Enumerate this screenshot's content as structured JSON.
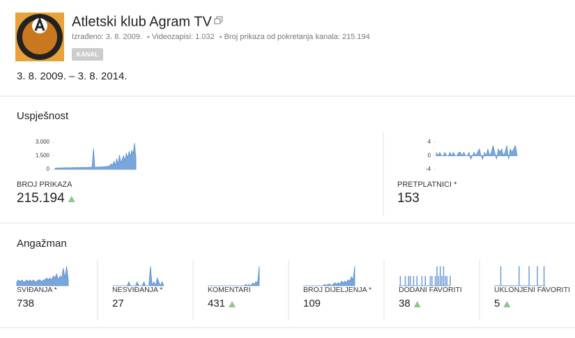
{
  "header": {
    "title": "Atletski klub Agram TV",
    "meta": [
      "Izrađeno: 3. 8. 2009.",
      "Videozapisi: 1.032",
      "Broj prikaza od pokretanja kanala: 215.194"
    ],
    "badge": "KANAL",
    "date_range": "3. 8. 2009. – 3. 8. 2014."
  },
  "performance": {
    "title": "Uspješnost",
    "metrics": [
      {
        "label": "BROJ PRIKAZA",
        "value": "215.194",
        "trend": "up",
        "chart": {
          "ylim": [
            0,
            3000
          ],
          "yticks": [
            {
              "value": 3000,
              "label": "3.000"
            },
            {
              "value": 1500,
              "label": "1.500"
            },
            0
          ],
          "values": [
            120,
            150,
            130,
            160,
            140,
            170,
            150,
            180,
            160,
            190,
            170,
            160,
            180,
            200,
            170,
            190,
            210,
            180,
            200,
            190,
            220,
            200,
            210,
            190,
            230,
            210,
            240,
            220,
            2300,
            250,
            230,
            260,
            240,
            280,
            260,
            300,
            270,
            320,
            290,
            350,
            400,
            600,
            450,
            900,
            380,
            1200,
            500,
            1600,
            700,
            1100,
            1500,
            900,
            1800,
            1200,
            2000,
            1400,
            2100,
            1700,
            2900,
            1300
          ]
        }
      },
      {
        "label": "PRETPLATNICI *",
        "value": "153",
        "trend": null,
        "chart": {
          "ylim": [
            -4,
            4
          ],
          "yticks": [
            4,
            0,
            -4
          ],
          "values": [
            1,
            0,
            1,
            0,
            0,
            1,
            0,
            0,
            1,
            0,
            1,
            0,
            0,
            1,
            1,
            0,
            1,
            0,
            0,
            1,
            -1,
            0,
            1,
            0,
            1,
            2,
            0,
            -1,
            1,
            0,
            2,
            0,
            1,
            3,
            1,
            -1,
            2,
            1,
            2,
            0,
            1,
            3,
            -1,
            2,
            1,
            2,
            3,
            0
          ]
        }
      }
    ]
  },
  "engagement": {
    "title": "Angažman",
    "metrics": [
      {
        "label": "SVIĐANJA *",
        "value": "738",
        "trend": null,
        "style": "area",
        "values": [
          2,
          3,
          2,
          3,
          2,
          2,
          3,
          2,
          3,
          2,
          3,
          2,
          2,
          3,
          3,
          2,
          3,
          3,
          4,
          3,
          4,
          3,
          5,
          4,
          6,
          3,
          5,
          4,
          9,
          4,
          10,
          3
        ]
      },
      {
        "label": "NESVIĐANJA *",
        "value": "27",
        "trend": null,
        "style": "area",
        "values": [
          0,
          0,
          0,
          0,
          0,
          0,
          0,
          0,
          0,
          0,
          1,
          0,
          0,
          0,
          0,
          1,
          0,
          0,
          0,
          1,
          0,
          0,
          0,
          5,
          0,
          1,
          0,
          2,
          1,
          0,
          1,
          0
        ]
      },
      {
        "label": "KOMENTARI",
        "value": "431",
        "trend": "up",
        "style": "area",
        "values": [
          0,
          0,
          0,
          0,
          0,
          0,
          0,
          0,
          0,
          0,
          0,
          0,
          0,
          0,
          0,
          0,
          0,
          0,
          0,
          0,
          0,
          0,
          0,
          1,
          0,
          1,
          0,
          2,
          1,
          3,
          2,
          14
        ]
      },
      {
        "label": "BROJ DIJELJENJA *",
        "value": "109",
        "trend": null,
        "style": "area",
        "values": [
          0,
          0,
          0,
          0,
          0,
          0,
          0,
          0,
          0,
          0,
          0,
          0,
          0,
          1,
          0,
          1,
          1,
          0,
          1,
          2,
          1,
          2,
          1,
          3,
          2,
          3,
          2,
          4,
          3,
          6,
          4,
          13
        ]
      },
      {
        "label": "DODANI FAVORITI",
        "value": "38",
        "trend": "up",
        "style": "bar",
        "values": [
          0,
          1,
          0,
          0,
          1,
          0,
          1,
          1,
          0,
          1,
          0,
          1,
          0,
          0,
          1,
          0,
          1,
          0,
          0,
          1,
          1,
          0,
          1,
          2,
          1,
          2,
          1,
          2,
          1,
          1,
          0,
          1
        ]
      },
      {
        "label": "UKLONJENI FAVORITI",
        "value": "5",
        "trend": "up",
        "style": "bar",
        "values": [
          0,
          0,
          0,
          0,
          1,
          0,
          0,
          0,
          0,
          0,
          0,
          0,
          0,
          0,
          0,
          1,
          0,
          0,
          0,
          0,
          0,
          1,
          0,
          0,
          0,
          0,
          1,
          0,
          0,
          0,
          1,
          0
        ]
      }
    ]
  }
}
